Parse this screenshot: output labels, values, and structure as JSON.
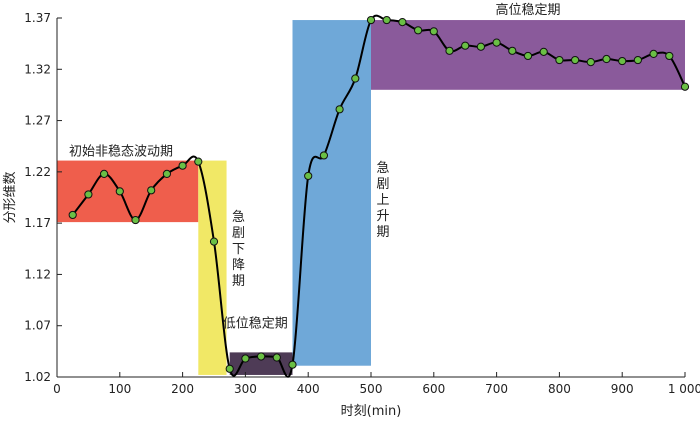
{
  "chart_data": {
    "type": "line",
    "xlabel": "时刻(min)",
    "ylabel": "分形维数",
    "xlim": [
      0,
      1000
    ],
    "ylim": [
      1.02,
      1.37
    ],
    "xticks": [
      0,
      100,
      200,
      300,
      400,
      500,
      600,
      700,
      800,
      900,
      1000
    ],
    "xtick_labels": [
      "0",
      "100",
      "200",
      "300",
      "400",
      "500",
      "600",
      "700",
      "800",
      "900",
      "1 000"
    ],
    "yticks": [
      1.02,
      1.07,
      1.12,
      1.17,
      1.22,
      1.27,
      1.32,
      1.37
    ],
    "ytick_labels": [
      "1.02",
      "1.07",
      "1.12",
      "1.17",
      "1.22",
      "1.27",
      "1.32",
      "1.37"
    ],
    "grid": false,
    "series": [
      {
        "line_color": "#000000",
        "marker_color": "#6abf45",
        "x": [
          25,
          50,
          75,
          100,
          125,
          150,
          175,
          200,
          225,
          250,
          275,
          300,
          325,
          350,
          375,
          400,
          425,
          450,
          475,
          500,
          525,
          550,
          575,
          600,
          625,
          650,
          675,
          700,
          725,
          750,
          775,
          800,
          825,
          850,
          875,
          900,
          925,
          950,
          975,
          1000
        ],
        "y": [
          1.178,
          1.198,
          1.218,
          1.201,
          1.173,
          1.202,
          1.218,
          1.226,
          1.23,
          1.152,
          1.028,
          1.038,
          1.04,
          1.039,
          1.032,
          1.216,
          1.236,
          1.281,
          1.311,
          1.368,
          1.368,
          1.366,
          1.358,
          1.357,
          1.338,
          1.343,
          1.342,
          1.346,
          1.338,
          1.333,
          1.337,
          1.329,
          1.329,
          1.327,
          1.33,
          1.328,
          1.329,
          1.335,
          1.333,
          1.303
        ]
      }
    ],
    "phases": [
      {
        "label": "初始非稳态波动期",
        "x0": 0,
        "x1": 225,
        "y0": 1.171,
        "y1": 1.231,
        "color": "#ef5e4c",
        "label_orientation": "horizontal"
      },
      {
        "label": "急剧下降期",
        "x0": 225,
        "x1": 270,
        "y0": 1.022,
        "y1": 1.231,
        "color": "#f1e866",
        "label_orientation": "vertical"
      },
      {
        "label": "低位稳定期",
        "x0": 275,
        "x1": 375,
        "y0": 1.022,
        "y1": 1.044,
        "color": "#4e3b56",
        "label_orientation": "horizontal"
      },
      {
        "label": "急剧上升期",
        "x0": 375,
        "x1": 500,
        "y0": 1.031,
        "y1": 1.368,
        "color": "#6fa8d8",
        "label_orientation": "vertical"
      },
      {
        "label": "高位稳定期",
        "x0": 500,
        "x1": 1000,
        "y0": 1.3,
        "y1": 1.368,
        "color": "#8a5a9b",
        "label_orientation": "horizontal"
      }
    ]
  }
}
